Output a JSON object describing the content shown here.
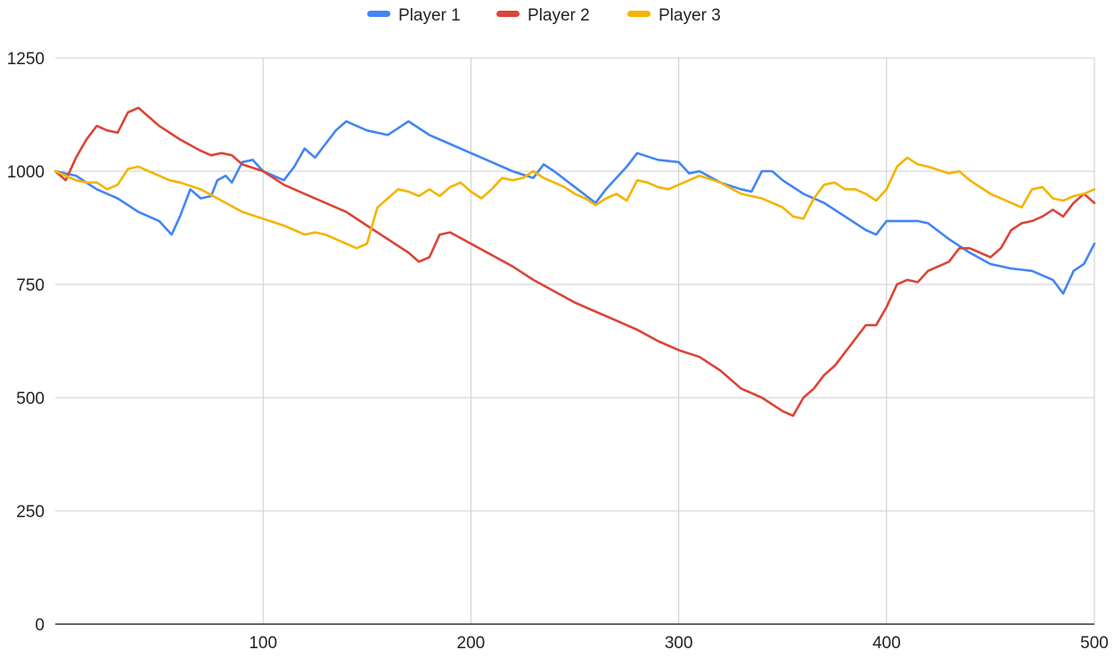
{
  "chart_data": {
    "type": "line",
    "title": "",
    "xlabel": "",
    "ylabel": "",
    "xlim": [
      0,
      500
    ],
    "ylim": [
      0,
      1250
    ],
    "x_ticks": [
      100,
      200,
      300,
      400,
      500
    ],
    "y_ticks": [
      0,
      250,
      500,
      750,
      1000,
      1250
    ],
    "grid": true,
    "legend_position": "top-center",
    "series": [
      {
        "name": "Player 1",
        "color": "#4285f4",
        "points": [
          [
            0,
            1000
          ],
          [
            10,
            990
          ],
          [
            20,
            960
          ],
          [
            30,
            940
          ],
          [
            40,
            910
          ],
          [
            50,
            890
          ],
          [
            56,
            860
          ],
          [
            60,
            900
          ],
          [
            65,
            960
          ],
          [
            70,
            940
          ],
          [
            75,
            945
          ],
          [
            78,
            980
          ],
          [
            82,
            990
          ],
          [
            85,
            975
          ],
          [
            90,
            1020
          ],
          [
            95,
            1025
          ],
          [
            100,
            1000
          ],
          [
            110,
            980
          ],
          [
            115,
            1010
          ],
          [
            120,
            1050
          ],
          [
            125,
            1030
          ],
          [
            130,
            1060
          ],
          [
            135,
            1090
          ],
          [
            140,
            1110
          ],
          [
            150,
            1090
          ],
          [
            160,
            1080
          ],
          [
            170,
            1110
          ],
          [
            180,
            1080
          ],
          [
            190,
            1060
          ],
          [
            200,
            1040
          ],
          [
            210,
            1020
          ],
          [
            220,
            1000
          ],
          [
            230,
            985
          ],
          [
            235,
            1015
          ],
          [
            240,
            1000
          ],
          [
            250,
            965
          ],
          [
            260,
            930
          ],
          [
            265,
            960
          ],
          [
            270,
            985
          ],
          [
            275,
            1010
          ],
          [
            280,
            1040
          ],
          [
            290,
            1025
          ],
          [
            300,
            1020
          ],
          [
            305,
            995
          ],
          [
            310,
            1000
          ],
          [
            320,
            975
          ],
          [
            330,
            960
          ],
          [
            335,
            955
          ],
          [
            340,
            1000
          ],
          [
            345,
            1000
          ],
          [
            350,
            980
          ],
          [
            360,
            950
          ],
          [
            370,
            930
          ],
          [
            380,
            900
          ],
          [
            390,
            870
          ],
          [
            395,
            860
          ],
          [
            400,
            890
          ],
          [
            410,
            890
          ],
          [
            415,
            890
          ],
          [
            420,
            885
          ],
          [
            430,
            850
          ],
          [
            440,
            820
          ],
          [
            450,
            795
          ],
          [
            460,
            785
          ],
          [
            470,
            780
          ],
          [
            480,
            760
          ],
          [
            485,
            730
          ],
          [
            490,
            780
          ],
          [
            495,
            795
          ],
          [
            500,
            840
          ]
        ]
      },
      {
        "name": "Player 2",
        "color": "#db4437",
        "points": [
          [
            0,
            1000
          ],
          [
            5,
            980
          ],
          [
            10,
            1030
          ],
          [
            15,
            1070
          ],
          [
            20,
            1100
          ],
          [
            25,
            1090
          ],
          [
            30,
            1085
          ],
          [
            35,
            1130
          ],
          [
            40,
            1140
          ],
          [
            45,
            1120
          ],
          [
            50,
            1100
          ],
          [
            60,
            1070
          ],
          [
            70,
            1045
          ],
          [
            75,
            1035
          ],
          [
            80,
            1040
          ],
          [
            85,
            1035
          ],
          [
            90,
            1015
          ],
          [
            100,
            1000
          ],
          [
            110,
            970
          ],
          [
            120,
            950
          ],
          [
            130,
            930
          ],
          [
            140,
            910
          ],
          [
            150,
            880
          ],
          [
            160,
            850
          ],
          [
            170,
            820
          ],
          [
            175,
            800
          ],
          [
            180,
            810
          ],
          [
            185,
            860
          ],
          [
            190,
            865
          ],
          [
            200,
            840
          ],
          [
            210,
            815
          ],
          [
            220,
            790
          ],
          [
            230,
            760
          ],
          [
            240,
            735
          ],
          [
            250,
            710
          ],
          [
            260,
            690
          ],
          [
            270,
            670
          ],
          [
            280,
            650
          ],
          [
            290,
            625
          ],
          [
            300,
            605
          ],
          [
            310,
            590
          ],
          [
            320,
            560
          ],
          [
            330,
            520
          ],
          [
            340,
            500
          ],
          [
            350,
            470
          ],
          [
            355,
            460
          ],
          [
            360,
            500
          ],
          [
            365,
            520
          ],
          [
            370,
            550
          ],
          [
            375,
            570
          ],
          [
            380,
            600
          ],
          [
            385,
            630
          ],
          [
            390,
            660
          ],
          [
            395,
            660
          ],
          [
            400,
            700
          ],
          [
            405,
            750
          ],
          [
            410,
            760
          ],
          [
            415,
            755
          ],
          [
            420,
            780
          ],
          [
            425,
            790
          ],
          [
            430,
            800
          ],
          [
            435,
            830
          ],
          [
            440,
            830
          ],
          [
            445,
            820
          ],
          [
            450,
            810
          ],
          [
            455,
            830
          ],
          [
            460,
            870
          ],
          [
            465,
            885
          ],
          [
            470,
            890
          ],
          [
            475,
            900
          ],
          [
            480,
            915
          ],
          [
            485,
            900
          ],
          [
            490,
            930
          ],
          [
            495,
            950
          ],
          [
            500,
            930
          ]
        ]
      },
      {
        "name": "Player 3",
        "color": "#f4b400",
        "points": [
          [
            0,
            1000
          ],
          [
            10,
            980
          ],
          [
            15,
            975
          ],
          [
            20,
            975
          ],
          [
            25,
            960
          ],
          [
            30,
            970
          ],
          [
            35,
            1005
          ],
          [
            40,
            1010
          ],
          [
            45,
            1000
          ],
          [
            50,
            990
          ],
          [
            55,
            980
          ],
          [
            60,
            975
          ],
          [
            70,
            960
          ],
          [
            80,
            935
          ],
          [
            90,
            910
          ],
          [
            100,
            895
          ],
          [
            110,
            880
          ],
          [
            115,
            870
          ],
          [
            120,
            860
          ],
          [
            125,
            865
          ],
          [
            130,
            860
          ],
          [
            135,
            850
          ],
          [
            140,
            840
          ],
          [
            145,
            830
          ],
          [
            150,
            840
          ],
          [
            155,
            920
          ],
          [
            160,
            940
          ],
          [
            165,
            960
          ],
          [
            170,
            955
          ],
          [
            175,
            945
          ],
          [
            180,
            960
          ],
          [
            185,
            945
          ],
          [
            190,
            965
          ],
          [
            195,
            975
          ],
          [
            200,
            955
          ],
          [
            205,
            940
          ],
          [
            210,
            960
          ],
          [
            215,
            985
          ],
          [
            220,
            980
          ],
          [
            225,
            985
          ],
          [
            230,
            1000
          ],
          [
            235,
            985
          ],
          [
            240,
            975
          ],
          [
            245,
            965
          ],
          [
            250,
            950
          ],
          [
            255,
            940
          ],
          [
            260,
            925
          ],
          [
            265,
            940
          ],
          [
            270,
            950
          ],
          [
            275,
            935
          ],
          [
            280,
            980
          ],
          [
            285,
            975
          ],
          [
            290,
            965
          ],
          [
            295,
            960
          ],
          [
            300,
            970
          ],
          [
            310,
            990
          ],
          [
            320,
            975
          ],
          [
            330,
            950
          ],
          [
            340,
            940
          ],
          [
            350,
            920
          ],
          [
            355,
            900
          ],
          [
            360,
            895
          ],
          [
            365,
            940
          ],
          [
            370,
            970
          ],
          [
            375,
            975
          ],
          [
            380,
            960
          ],
          [
            385,
            960
          ],
          [
            390,
            950
          ],
          [
            395,
            935
          ],
          [
            400,
            960
          ],
          [
            405,
            1010
          ],
          [
            410,
            1030
          ],
          [
            415,
            1015
          ],
          [
            420,
            1010
          ],
          [
            430,
            995
          ],
          [
            435,
            1000
          ],
          [
            440,
            980
          ],
          [
            450,
            950
          ],
          [
            460,
            930
          ],
          [
            465,
            920
          ],
          [
            470,
            960
          ],
          [
            475,
            965
          ],
          [
            480,
            940
          ],
          [
            485,
            935
          ],
          [
            490,
            945
          ],
          [
            495,
            950
          ],
          [
            500,
            960
          ]
        ]
      }
    ]
  }
}
